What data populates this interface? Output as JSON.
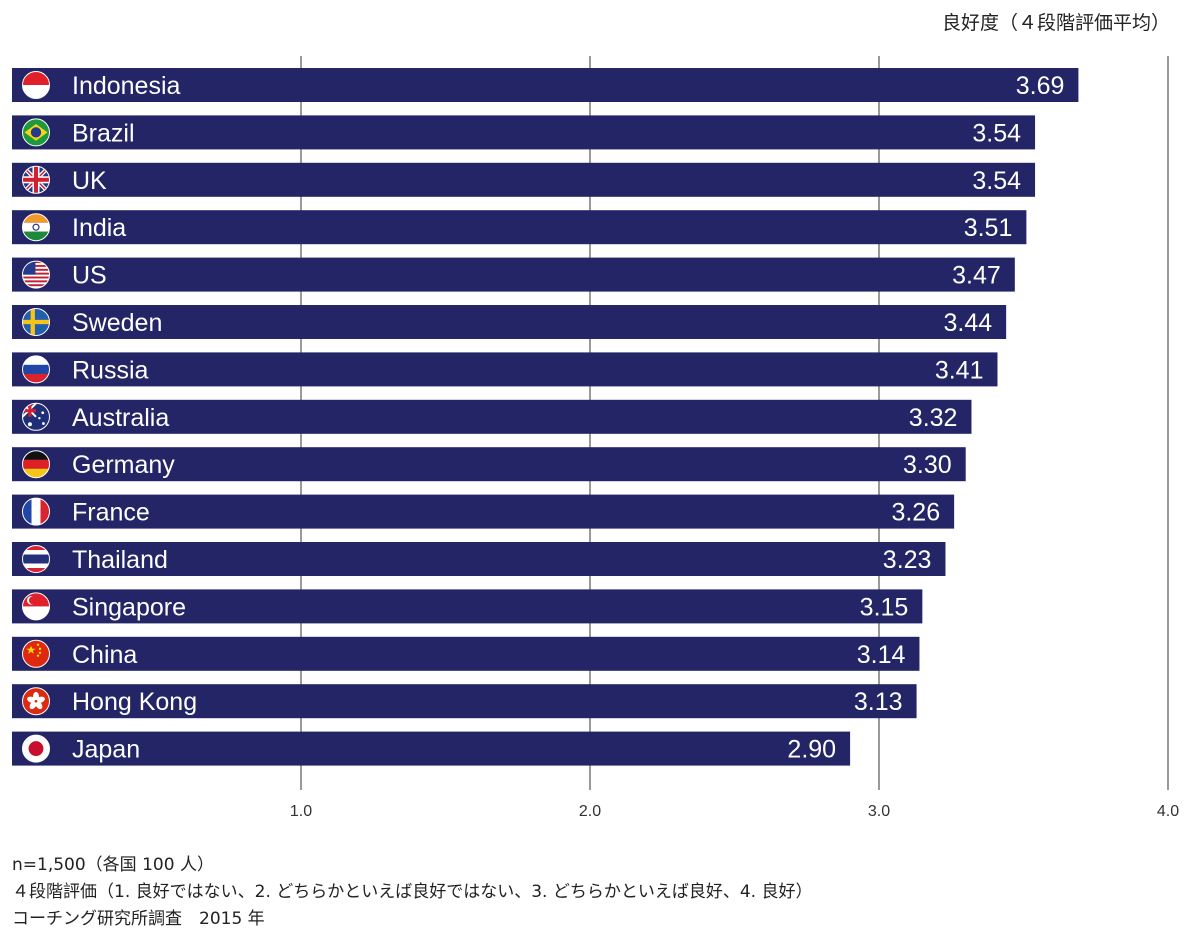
{
  "chart_data": {
    "type": "bar",
    "orientation": "horizontal",
    "unit_label": "良好度（４段階評価平均）",
    "categories": [
      "Indonesia",
      "Brazil",
      "UK",
      "India",
      "US",
      "Sweden",
      "Russia",
      "Australia",
      "Germany",
      "France",
      "Thailand",
      "Singapore",
      "China",
      "Hong Kong",
      "Japan"
    ],
    "values": [
      3.69,
      3.54,
      3.54,
      3.51,
      3.47,
      3.44,
      3.41,
      3.32,
      3.3,
      3.26,
      3.23,
      3.15,
      3.14,
      3.13,
      2.9
    ],
    "value_labels": [
      "3.69",
      "3.54",
      "3.54",
      "3.51",
      "3.47",
      "3.44",
      "3.41",
      "3.32",
      "3.30",
      "3.26",
      "3.23",
      "3.15",
      "3.14",
      "3.13",
      "2.90"
    ],
    "flags": [
      "indonesia-flag-icon",
      "brazil-flag-icon",
      "uk-flag-icon",
      "india-flag-icon",
      "us-flag-icon",
      "sweden-flag-icon",
      "russia-flag-icon",
      "australia-flag-icon",
      "germany-flag-icon",
      "france-flag-icon",
      "thailand-flag-icon",
      "singapore-flag-icon",
      "china-flag-icon",
      "hong-kong-flag-icon",
      "japan-flag-icon"
    ],
    "xlim": [
      0,
      4.0
    ],
    "ticks": [
      1.0,
      2.0,
      3.0,
      4.0
    ],
    "tick_labels": [
      "1.0",
      "2.0",
      "3.0",
      "4.0"
    ],
    "grid": true,
    "bar_color": "#232566"
  },
  "notes": [
    "n=1,500（各国 100 人）",
    "４段階評価（1. 良好ではない、2. どちらかといえば良好ではない、3. どちらかといえば良好、4. 良好）",
    "コーチング研究所調査　2015 年"
  ]
}
